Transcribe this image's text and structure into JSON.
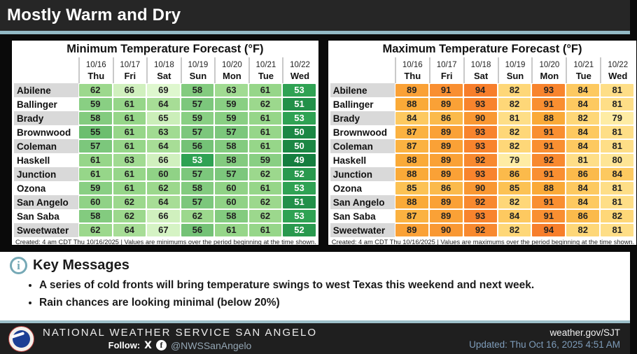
{
  "title_bar": {
    "title": "Mostly Warm and Dry"
  },
  "colors": {
    "accent_teal": "#92b9c5",
    "titlebar_bg": "#262626",
    "footer_bg": "#1f1f1f",
    "info_icon_teal": "#76a9b6",
    "muted_blue": "#7e9cba",
    "handle_gray_blue": "#94a6b4",
    "label_stripe_gray": "#d9d9d9"
  },
  "key_messages": {
    "heading": "Key Messages",
    "bullets": [
      "A series of cold fronts will bring temperature swings to west Texas this weekend and next week.",
      "Rain chances are looking minimal (below 20%)"
    ]
  },
  "footer": {
    "org": "NATIONAL WEATHER SERVICE SAN ANGELO",
    "follow_label": "Follow:",
    "handle": "@NWSSanAngelo",
    "x_icon": "X",
    "fb_icon": "f",
    "url": "weather.gov/SJT",
    "updated": "Updated: Thu Oct 16, 2025 4:51 AM"
  },
  "chart_data": [
    {
      "type": "heatmap",
      "title": "Minimum Temperature Forecast (°F)",
      "note": "Created: 4 am CDT Thu 10/16/2025  |  Values are minimums over the period beginning at the time shown.",
      "columns": [
        {
          "date": "10/16",
          "day": "Thu"
        },
        {
          "date": "10/17",
          "day": "Fri"
        },
        {
          "date": "10/18",
          "day": "Sat"
        },
        {
          "date": "10/19",
          "day": "Sun"
        },
        {
          "date": "10/20",
          "day": "Mon"
        },
        {
          "date": "10/21",
          "day": "Tue"
        },
        {
          "date": "10/22",
          "day": "Wed"
        }
      ],
      "rows": [
        {
          "city": "Abilene",
          "values": [
            62,
            66,
            69,
            58,
            63,
            61,
            53
          ]
        },
        {
          "city": "Ballinger",
          "values": [
            59,
            61,
            64,
            57,
            59,
            62,
            51
          ]
        },
        {
          "city": "Brady",
          "values": [
            58,
            61,
            65,
            59,
            59,
            61,
            53
          ]
        },
        {
          "city": "Brownwood",
          "values": [
            55,
            61,
            63,
            57,
            57,
            61,
            50
          ]
        },
        {
          "city": "Coleman",
          "values": [
            57,
            61,
            64,
            56,
            58,
            61,
            50
          ]
        },
        {
          "city": "Haskell",
          "values": [
            61,
            63,
            66,
            53,
            58,
            59,
            49
          ]
        },
        {
          "city": "Junction",
          "values": [
            61,
            61,
            60,
            57,
            57,
            62,
            52
          ]
        },
        {
          "city": "Ozona",
          "values": [
            59,
            61,
            62,
            58,
            60,
            61,
            53
          ]
        },
        {
          "city": "San Angelo",
          "values": [
            60,
            62,
            64,
            57,
            60,
            62,
            51
          ]
        },
        {
          "city": "San Saba",
          "values": [
            58,
            62,
            66,
            62,
            58,
            62,
            53
          ]
        },
        {
          "city": "Sweetwater",
          "values": [
            62,
            64,
            67,
            56,
            61,
            61,
            52
          ]
        }
      ],
      "color_scale": {
        "description": "green ramp, colder = darker",
        "stops": [
          [
            49,
            "#157e3f"
          ],
          [
            53,
            "#2fa253"
          ],
          [
            54,
            "#64b969"
          ],
          [
            57,
            "#7cc77c"
          ],
          [
            61,
            "#96d689"
          ],
          [
            64,
            "#a7dd96"
          ],
          [
            65,
            "#cbeeb9"
          ],
          [
            69,
            "#def7ce"
          ]
        ]
      },
      "white_text_at_or_below": 53
    },
    {
      "type": "heatmap",
      "title": "Maximum Temperature Forecast (°F)",
      "note": "Created: 4 am CDT Thu 10/16/2025  |  Values are maximums over the period beginning at the time shown.",
      "columns": [
        {
          "date": "10/16",
          "day": "Thu"
        },
        {
          "date": "10/17",
          "day": "Fri"
        },
        {
          "date": "10/18",
          "day": "Sat"
        },
        {
          "date": "10/19",
          "day": "Sun"
        },
        {
          "date": "10/20",
          "day": "Mon"
        },
        {
          "date": "10/21",
          "day": "Tue"
        },
        {
          "date": "10/22",
          "day": "Wed"
        }
      ],
      "rows": [
        {
          "city": "Abilene",
          "values": [
            89,
            91,
            94,
            82,
            93,
            84,
            81
          ]
        },
        {
          "city": "Ballinger",
          "values": [
            88,
            89,
            93,
            82,
            91,
            84,
            81
          ]
        },
        {
          "city": "Brady",
          "values": [
            84,
            86,
            90,
            81,
            88,
            82,
            79
          ]
        },
        {
          "city": "Brownwood",
          "values": [
            87,
            89,
            93,
            82,
            91,
            84,
            81
          ]
        },
        {
          "city": "Coleman",
          "values": [
            87,
            89,
            93,
            82,
            91,
            84,
            81
          ]
        },
        {
          "city": "Haskell",
          "values": [
            88,
            89,
            92,
            79,
            92,
            81,
            80
          ]
        },
        {
          "city": "Junction",
          "values": [
            88,
            89,
            93,
            86,
            91,
            86,
            84
          ]
        },
        {
          "city": "Ozona",
          "values": [
            85,
            86,
            90,
            85,
            88,
            84,
            81
          ]
        },
        {
          "city": "San Angelo",
          "values": [
            88,
            89,
            92,
            82,
            91,
            84,
            81
          ]
        },
        {
          "city": "San Saba",
          "values": [
            87,
            89,
            93,
            84,
            91,
            86,
            82
          ]
        },
        {
          "city": "Sweetwater",
          "values": [
            89,
            90,
            92,
            82,
            94,
            82,
            81
          ]
        }
      ],
      "color_scale": {
        "description": "orange ramp, hotter = darker",
        "stops": [
          [
            79,
            "#feeca4"
          ],
          [
            82,
            "#fed778"
          ],
          [
            85,
            "#fcc254"
          ],
          [
            88,
            "#faaa38"
          ],
          [
            91,
            "#f98f31"
          ],
          [
            94,
            "#f77e2b"
          ]
        ]
      },
      "white_text_at_or_below": null
    }
  ]
}
